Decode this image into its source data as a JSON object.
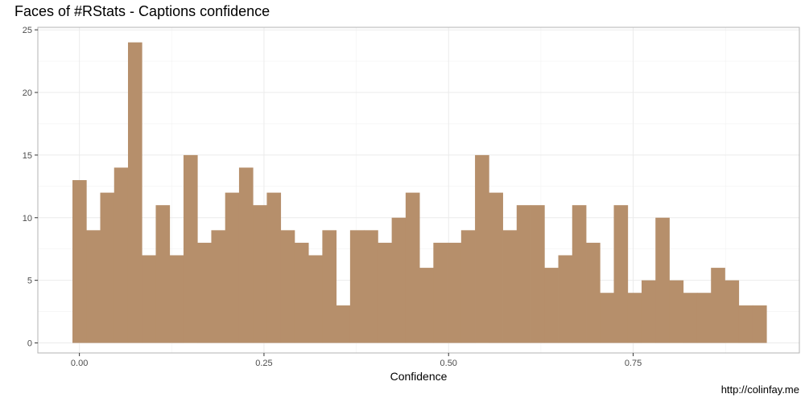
{
  "caption": "http://colinfay.me",
  "chart_data": {
    "type": "bar",
    "title": "Faces of #RStats - Captions confidence",
    "xlabel": "Confidence",
    "ylabel": "",
    "bar_color": "#B68F6B",
    "grid": true,
    "ylim": [
      -0.8,
      25.2
    ],
    "xlim": [
      -0.0563,
      0.9751
    ],
    "x_ticks": [
      0.0,
      0.25,
      0.5,
      0.75
    ],
    "x_tick_labels": [
      "0.00",
      "0.25",
      "0.50",
      "0.75"
    ],
    "y_ticks": [
      0,
      5,
      10,
      15,
      20,
      25
    ],
    "y_tick_labels": [
      "0",
      "5",
      "10",
      "15",
      "20",
      "25"
    ],
    "bin_width": 0.0188,
    "bin_start": -0.0094,
    "values": [
      13,
      9,
      12,
      14,
      24,
      7,
      11,
      7,
      15,
      8,
      9,
      12,
      14,
      11,
      12,
      9,
      8,
      7,
      9,
      3,
      9,
      9,
      8,
      10,
      12,
      6,
      8,
      8,
      9,
      15,
      12,
      9,
      11,
      11,
      6,
      7,
      11,
      8,
      4,
      11,
      4,
      5,
      10,
      5,
      4,
      4,
      6,
      5,
      3,
      3
    ]
  }
}
